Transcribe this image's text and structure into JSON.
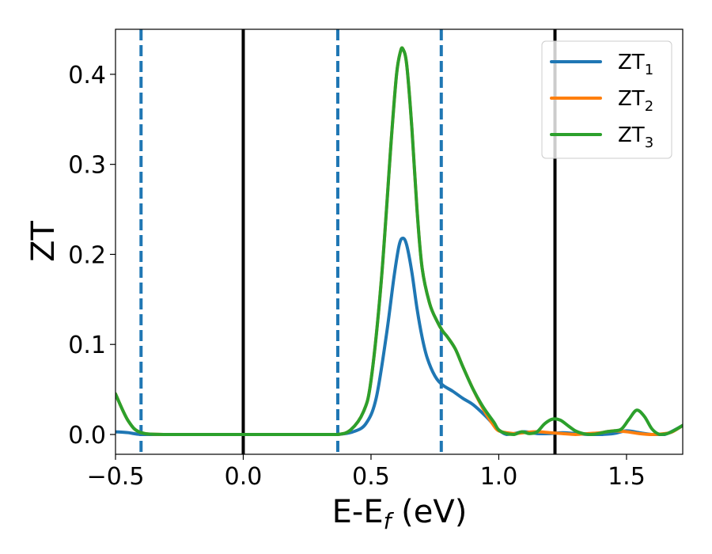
{
  "chart_data": {
    "type": "line",
    "xlabel": {
      "base": "E-E",
      "sub": "f",
      "unit": " (eV)"
    },
    "ylabel": "ZT",
    "xlim": [
      -0.5,
      1.72
    ],
    "ylim": [
      -0.022,
      0.45
    ],
    "xticks": [
      -0.5,
      0.0,
      0.5,
      1.0,
      1.5
    ],
    "xtick_labels": [
      "−0.5",
      "0.0",
      "0.5",
      "1.0",
      "1.5"
    ],
    "yticks": [
      0.0,
      0.1,
      0.2,
      0.3,
      0.4
    ],
    "ytick_labels": [
      "0.0",
      "0.1",
      "0.2",
      "0.3",
      "0.4"
    ],
    "legend_position": "top-right",
    "vertical_lines": [
      {
        "x": -0.4,
        "style": "dashed",
        "color": "#1f77b4"
      },
      {
        "x": 0.0,
        "style": "solid",
        "color": "#000000"
      },
      {
        "x": 0.37,
        "style": "dashed",
        "color": "#1f77b4"
      },
      {
        "x": 0.775,
        "style": "dashed",
        "color": "#1f77b4"
      },
      {
        "x": 1.22,
        "style": "solid",
        "color": "#000000"
      }
    ],
    "series": [
      {
        "name": "ZT",
        "sub": "1",
        "color": "#1f77b4",
        "x": [
          -0.5,
          -0.45,
          -0.4,
          -0.3,
          0.0,
          0.3,
          0.37,
          0.43,
          0.48,
          0.52,
          0.56,
          0.59,
          0.61,
          0.625,
          0.64,
          0.66,
          0.68,
          0.7,
          0.72,
          0.75,
          0.78,
          0.82,
          0.86,
          0.9,
          0.95,
          1.0,
          1.03,
          1.06,
          1.1,
          1.15,
          1.2,
          1.25,
          1.3,
          1.35,
          1.4,
          1.45,
          1.5,
          1.55,
          1.6,
          1.65,
          1.72
        ],
        "y": [
          0.003,
          0.002,
          0.0,
          0.0,
          0.0,
          0.0,
          0.0,
          0.003,
          0.012,
          0.04,
          0.11,
          0.175,
          0.21,
          0.218,
          0.21,
          0.18,
          0.14,
          0.108,
          0.085,
          0.065,
          0.055,
          0.048,
          0.04,
          0.033,
          0.02,
          0.005,
          0.0,
          0.001,
          0.003,
          0.001,
          0.001,
          0.002,
          0.001,
          0.0,
          0.0,
          0.001,
          0.004,
          0.002,
          0.0,
          0.0,
          0.01
        ]
      },
      {
        "name": "ZT",
        "sub": "2",
        "color": "#ff7f0e",
        "x": [
          -0.5,
          -0.45,
          -0.4,
          -0.3,
          0.0,
          0.3,
          0.37,
          0.42,
          0.47,
          0.5,
          0.54,
          0.58,
          0.6,
          0.615,
          0.625,
          0.64,
          0.66,
          0.68,
          0.7,
          0.73,
          0.76,
          0.78,
          0.8,
          0.83,
          0.86,
          0.9,
          0.94,
          0.98,
          1.0,
          1.03,
          1.06,
          1.1,
          1.15,
          1.2,
          1.25,
          1.3,
          1.35,
          1.4,
          1.45,
          1.5,
          1.55,
          1.6,
          1.65,
          1.68,
          1.72
        ],
        "y": [
          0.045,
          0.015,
          0.002,
          0.0,
          0.0,
          0.0,
          0.0,
          0.005,
          0.025,
          0.06,
          0.17,
          0.33,
          0.4,
          0.425,
          0.428,
          0.41,
          0.34,
          0.25,
          0.185,
          0.145,
          0.125,
          0.115,
          0.108,
          0.095,
          0.075,
          0.05,
          0.028,
          0.01,
          0.004,
          0.002,
          0.001,
          0.002,
          0.003,
          0.002,
          0.001,
          0.0,
          0.001,
          0.002,
          0.004,
          0.003,
          0.001,
          0.0,
          0.001,
          0.003,
          0.01
        ]
      },
      {
        "name": "ZT",
        "sub": "3",
        "color": "#2ca02c",
        "x": [
          -0.5,
          -0.45,
          -0.4,
          -0.3,
          0.0,
          0.3,
          0.37,
          0.42,
          0.47,
          0.5,
          0.54,
          0.58,
          0.6,
          0.615,
          0.625,
          0.64,
          0.66,
          0.68,
          0.7,
          0.73,
          0.76,
          0.78,
          0.8,
          0.83,
          0.86,
          0.9,
          0.94,
          0.98,
          1.0,
          1.03,
          1.06,
          1.09,
          1.12,
          1.15,
          1.18,
          1.21,
          1.24,
          1.27,
          1.3,
          1.33,
          1.36,
          1.39,
          1.42,
          1.45,
          1.48,
          1.51,
          1.54,
          1.57,
          1.6,
          1.63,
          1.66,
          1.69,
          1.72
        ],
        "y": [
          0.045,
          0.015,
          0.002,
          0.0,
          0.0,
          0.0,
          0.0,
          0.005,
          0.025,
          0.06,
          0.17,
          0.33,
          0.4,
          0.425,
          0.428,
          0.41,
          0.34,
          0.25,
          0.185,
          0.145,
          0.125,
          0.115,
          0.108,
          0.095,
          0.075,
          0.05,
          0.03,
          0.014,
          0.005,
          0.001,
          0.0,
          0.003,
          0.001,
          0.003,
          0.012,
          0.017,
          0.016,
          0.01,
          0.004,
          0.001,
          0.0,
          0.001,
          0.003,
          0.004,
          0.006,
          0.017,
          0.027,
          0.02,
          0.006,
          0.0,
          0.001,
          0.005,
          0.01
        ]
      }
    ]
  }
}
